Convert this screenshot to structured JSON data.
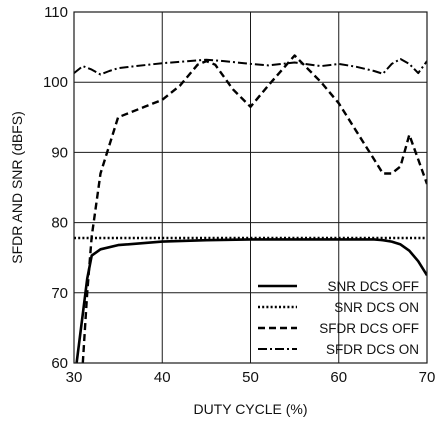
{
  "chart_data": {
    "type": "line",
    "title": "",
    "xlabel": "DUTY CYCLE (%)",
    "ylabel": "SFDR AND SNR (dBFS)",
    "xlim": [
      30,
      70
    ],
    "ylim": [
      60,
      110
    ],
    "x_ticks": [
      "30",
      "40",
      "50",
      "60",
      "70"
    ],
    "y_ticks": [
      "60",
      "70",
      "80",
      "90",
      "100",
      "110"
    ],
    "grid": true,
    "legend_position": "bottom-right",
    "series": [
      {
        "name": "SNR DCS OFF",
        "style": "solid",
        "color": "#000000",
        "x": [
          30.3,
          31,
          31.5,
          32,
          33,
          35,
          40,
          45,
          50,
          55,
          60,
          64,
          65,
          66,
          67,
          68,
          69,
          70
        ],
        "y": [
          60,
          67,
          72,
          75.3,
          76.2,
          76.8,
          77.3,
          77.5,
          77.6,
          77.6,
          77.6,
          77.6,
          77.5,
          77.3,
          76.9,
          76,
          74.5,
          72.5
        ]
      },
      {
        "name": "SNR DCS ON",
        "style": "dotted",
        "color": "#000000",
        "x": [
          30,
          70
        ],
        "y": [
          77.8,
          77.8
        ]
      },
      {
        "name": "SFDR DCS OFF",
        "style": "dashed",
        "color": "#000000",
        "x": [
          31,
          31.5,
          32,
          33,
          35,
          38,
          40,
          42,
          44,
          45,
          46,
          48,
          50,
          52,
          55,
          58,
          60,
          62,
          64,
          65,
          66,
          67,
          68,
          69,
          70
        ],
        "y": [
          60,
          70,
          78,
          87,
          95,
          96.5,
          97.5,
          99.5,
          102.5,
          103,
          102.5,
          99,
          96.5,
          99.5,
          103.8,
          100,
          97,
          93,
          89,
          87,
          87,
          88,
          92.5,
          89,
          85.5
        ]
      },
      {
        "name": "SFDR DCS ON",
        "style": "dashdot",
        "color": "#000000",
        "x": [
          30,
          31,
          32,
          33,
          34,
          35,
          37,
          40,
          43,
          45,
          47,
          50,
          52,
          55,
          58,
          60,
          62,
          64,
          65,
          66,
          67,
          68,
          69,
          70
        ],
        "y": [
          101.3,
          102.3,
          101.8,
          101.1,
          101.6,
          102,
          102.3,
          102.7,
          103,
          103.2,
          103,
          102.6,
          102.4,
          102.8,
          102.3,
          102.6,
          102.2,
          101.6,
          101.2,
          102.6,
          103.3,
          102.6,
          101.3,
          103
        ]
      }
    ]
  }
}
